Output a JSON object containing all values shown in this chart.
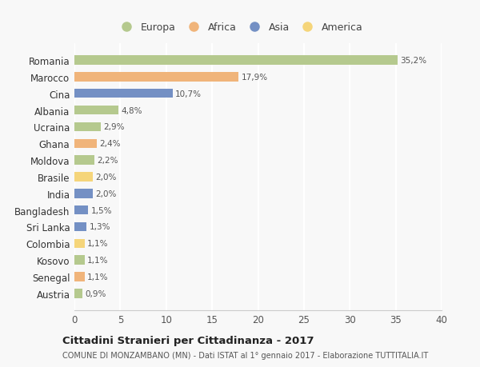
{
  "countries": [
    "Romania",
    "Marocco",
    "Cina",
    "Albania",
    "Ucraina",
    "Ghana",
    "Moldova",
    "Brasile",
    "India",
    "Bangladesh",
    "Sri Lanka",
    "Colombia",
    "Kosovo",
    "Senegal",
    "Austria"
  ],
  "values": [
    35.2,
    17.9,
    10.7,
    4.8,
    2.9,
    2.4,
    2.2,
    2.0,
    2.0,
    1.5,
    1.3,
    1.1,
    1.1,
    1.1,
    0.9
  ],
  "labels": [
    "35,2%",
    "17,9%",
    "10,7%",
    "4,8%",
    "2,9%",
    "2,4%",
    "2,2%",
    "2,0%",
    "2,0%",
    "1,5%",
    "1,3%",
    "1,1%",
    "1,1%",
    "1,1%",
    "0,9%"
  ],
  "colors": [
    "#b5c98e",
    "#f0b47a",
    "#7490c4",
    "#b5c98e",
    "#b5c98e",
    "#f0b47a",
    "#b5c98e",
    "#f5d57a",
    "#7490c4",
    "#7490c4",
    "#7490c4",
    "#f5d57a",
    "#b5c98e",
    "#f0b47a",
    "#b5c98e"
  ],
  "legend_labels": [
    "Europa",
    "Africa",
    "Asia",
    "America"
  ],
  "legend_colors": [
    "#b5c98e",
    "#f0b47a",
    "#7490c4",
    "#f5d57a"
  ],
  "title": "Cittadini Stranieri per Cittadinanza - 2017",
  "subtitle": "COMUNE DI MONZAMBANO (MN) - Dati ISTAT al 1° gennaio 2017 - Elaborazione TUTTITALIA.IT",
  "xlim": [
    0,
    40
  ],
  "xticks": [
    0,
    5,
    10,
    15,
    20,
    25,
    30,
    35,
    40
  ],
  "background_color": "#f8f8f8",
  "grid_color": "#ffffff",
  "bar_height": 0.55
}
